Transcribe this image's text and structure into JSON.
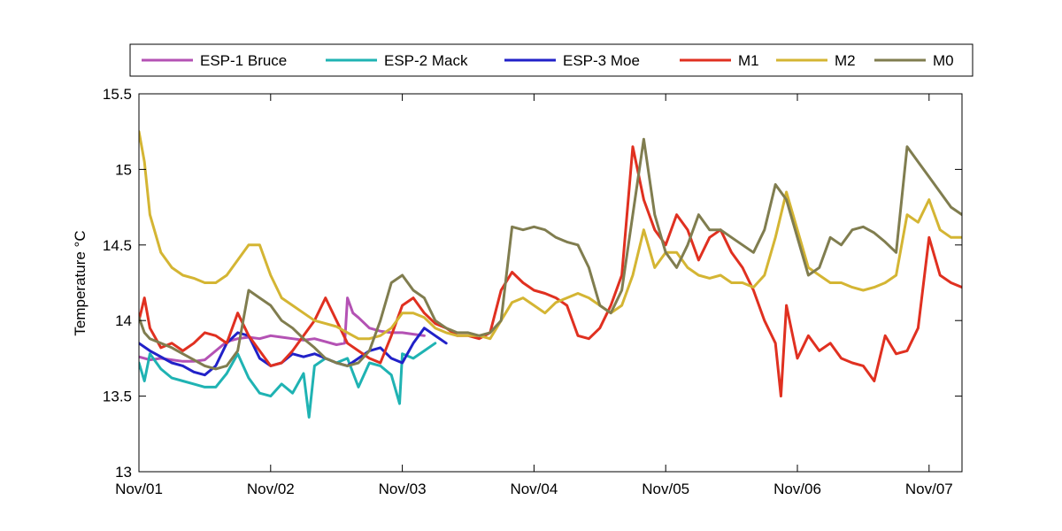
{
  "chart_data": {
    "type": "line",
    "title": "",
    "xlabel": "",
    "ylabel": "Temperature °C",
    "ylim": [
      13,
      15.5
    ],
    "xlim": [
      "2011-11-01 00:00",
      "2011-11-07 06:00"
    ],
    "grid": false,
    "legend_position": "top",
    "x_ticks": [
      "2011-11-01",
      "2011-11-02",
      "2011-11-03",
      "2011-11-04",
      "2011-11-05",
      "2011-11-06",
      "2011-11-07"
    ],
    "x_tick_labels": [
      "Nov/01",
      "Nov/02",
      "Nov/03",
      "Nov/04",
      "Nov/05",
      "Nov/06",
      "Nov/07"
    ],
    "y_ticks": [
      13,
      13.5,
      14,
      14.5,
      15,
      15.5
    ],
    "y_tick_labels": [
      "13",
      "13.5",
      "14",
      "14.5",
      "15",
      "15.5"
    ],
    "series": [
      {
        "name": "ESP-1 Bruce",
        "color": "#b452b4",
        "x": [
          "2011-11-01 00:00",
          "2011-11-01 02:00",
          "2011-11-01 04:00",
          "2011-11-01 06:00",
          "2011-11-01 08:00",
          "2011-11-01 10:00",
          "2011-11-01 12:00",
          "2011-11-01 14:00",
          "2011-11-01 16:00",
          "2011-11-01 18:00",
          "2011-11-01 20:00",
          "2011-11-01 22:00",
          "2011-11-02 00:00",
          "2011-11-02 02:00",
          "2011-11-02 04:00",
          "2011-11-02 06:00",
          "2011-11-02 08:00",
          "2011-11-02 10:00",
          "2011-11-02 12:00",
          "2011-11-02 13:30",
          "2011-11-02 14:00",
          "2011-11-02 14:30",
          "2011-11-02 15:00",
          "2011-11-02 16:00",
          "2011-11-02 18:00",
          "2011-11-02 20:00",
          "2011-11-02 22:00",
          "2011-11-03 00:00",
          "2011-11-03 02:00",
          "2011-11-03 04:00"
        ],
        "y": [
          13.76,
          13.74,
          13.75,
          13.74,
          13.73,
          13.73,
          13.74,
          13.8,
          13.86,
          13.88,
          13.89,
          13.88,
          13.9,
          13.89,
          13.88,
          13.87,
          13.88,
          13.86,
          13.84,
          13.85,
          14.15,
          14.1,
          14.05,
          14.02,
          13.95,
          13.93,
          13.92,
          13.92,
          13.91,
          13.9
        ]
      },
      {
        "name": "ESP-2 Mack",
        "color": "#1fb3b3",
        "x": [
          "2011-11-01 00:00",
          "2011-11-01 01:00",
          "2011-11-01 02:00",
          "2011-11-01 04:00",
          "2011-11-01 06:00",
          "2011-11-01 08:00",
          "2011-11-01 10:00",
          "2011-11-01 12:00",
          "2011-11-01 14:00",
          "2011-11-01 16:00",
          "2011-11-01 18:00",
          "2011-11-01 20:00",
          "2011-11-01 22:00",
          "2011-11-02 00:00",
          "2011-11-02 02:00",
          "2011-11-02 04:00",
          "2011-11-02 06:00",
          "2011-11-02 07:00",
          "2011-11-02 08:00",
          "2011-11-02 10:00",
          "2011-11-02 12:00",
          "2011-11-02 14:00",
          "2011-11-02 16:00",
          "2011-11-02 18:00",
          "2011-11-02 20:00",
          "2011-11-02 22:00",
          "2011-11-02 23:30",
          "2011-11-03 00:00",
          "2011-11-03 02:00",
          "2011-11-03 04:00",
          "2011-11-03 06:00"
        ],
        "y": [
          13.72,
          13.6,
          13.78,
          13.68,
          13.62,
          13.6,
          13.58,
          13.56,
          13.56,
          13.65,
          13.78,
          13.62,
          13.52,
          13.5,
          13.58,
          13.52,
          13.65,
          13.36,
          13.7,
          13.75,
          13.72,
          13.75,
          13.56,
          13.72,
          13.7,
          13.64,
          13.45,
          13.78,
          13.75,
          13.8,
          13.85
        ]
      },
      {
        "name": "ESP-3 Moe",
        "color": "#2121c8",
        "x": [
          "2011-11-01 00:00",
          "2011-11-01 02:00",
          "2011-11-01 04:00",
          "2011-11-01 06:00",
          "2011-11-01 08:00",
          "2011-11-01 10:00",
          "2011-11-01 12:00",
          "2011-11-01 14:00",
          "2011-11-01 16:00",
          "2011-11-01 18:00",
          "2011-11-01 20:00",
          "2011-11-01 22:00",
          "2011-11-02 00:00",
          "2011-11-02 02:00",
          "2011-11-02 04:00",
          "2011-11-02 06:00",
          "2011-11-02 08:00",
          "2011-11-02 10:00",
          "2011-11-02 12:00",
          "2011-11-02 14:00",
          "2011-11-02 16:00",
          "2011-11-02 18:00",
          "2011-11-02 20:00",
          "2011-11-02 22:00",
          "2011-11-03 00:00",
          "2011-11-03 02:00",
          "2011-11-03 04:00",
          "2011-11-03 06:00",
          "2011-11-03 08:00"
        ],
        "y": [
          13.85,
          13.8,
          13.76,
          13.72,
          13.7,
          13.66,
          13.64,
          13.7,
          13.85,
          13.92,
          13.9,
          13.75,
          13.7,
          13.72,
          13.78,
          13.76,
          13.78,
          13.75,
          13.72,
          13.7,
          13.75,
          13.8,
          13.82,
          13.75,
          13.72,
          13.85,
          13.95,
          13.9,
          13.85
        ]
      },
      {
        "name": "M1",
        "color": "#e03020",
        "x": [
          "2011-11-01 00:00",
          "2011-11-01 01:00",
          "2011-11-01 02:00",
          "2011-11-01 04:00",
          "2011-11-01 06:00",
          "2011-11-01 08:00",
          "2011-11-01 10:00",
          "2011-11-01 12:00",
          "2011-11-01 14:00",
          "2011-11-01 16:00",
          "2011-11-01 18:00",
          "2011-11-01 20:00",
          "2011-11-01 22:00",
          "2011-11-02 00:00",
          "2011-11-02 02:00",
          "2011-11-02 04:00",
          "2011-11-02 06:00",
          "2011-11-02 08:00",
          "2011-11-02 10:00",
          "2011-11-02 12:00",
          "2011-11-02 14:00",
          "2011-11-02 16:00",
          "2011-11-02 18:00",
          "2011-11-02 20:00",
          "2011-11-02 22:00",
          "2011-11-03 00:00",
          "2011-11-03 02:00",
          "2011-11-03 04:00",
          "2011-11-03 06:00",
          "2011-11-03 08:00",
          "2011-11-03 10:00",
          "2011-11-03 12:00",
          "2011-11-03 14:00",
          "2011-11-03 16:00",
          "2011-11-03 18:00",
          "2011-11-03 20:00",
          "2011-11-03 22:00",
          "2011-11-04 00:00",
          "2011-11-04 02:00",
          "2011-11-04 04:00",
          "2011-11-04 06:00",
          "2011-11-04 08:00",
          "2011-11-04 10:00",
          "2011-11-04 12:00",
          "2011-11-04 14:00",
          "2011-11-04 16:00",
          "2011-11-04 18:00",
          "2011-11-04 20:00",
          "2011-11-04 22:00",
          "2011-11-05 00:00",
          "2011-11-05 02:00",
          "2011-11-05 04:00",
          "2011-11-05 06:00",
          "2011-11-05 08:00",
          "2011-11-05 10:00",
          "2011-11-05 12:00",
          "2011-11-05 14:00",
          "2011-11-05 16:00",
          "2011-11-05 18:00",
          "2011-11-05 20:00",
          "2011-11-05 21:00",
          "2011-11-05 22:00",
          "2011-11-06 00:00",
          "2011-11-06 02:00",
          "2011-11-06 04:00",
          "2011-11-06 06:00",
          "2011-11-06 08:00",
          "2011-11-06 10:00",
          "2011-11-06 12:00",
          "2011-11-06 14:00",
          "2011-11-06 16:00",
          "2011-11-06 18:00",
          "2011-11-06 20:00",
          "2011-11-06 22:00",
          "2011-11-07 00:00",
          "2011-11-07 02:00",
          "2011-11-07 04:00",
          "2011-11-07 06:00"
        ],
        "y": [
          14.0,
          14.15,
          13.95,
          13.82,
          13.85,
          13.8,
          13.85,
          13.92,
          13.9,
          13.85,
          14.05,
          13.9,
          13.8,
          13.7,
          13.72,
          13.8,
          13.9,
          14.0,
          14.15,
          14.0,
          13.85,
          13.8,
          13.75,
          13.72,
          13.9,
          14.1,
          14.15,
          14.05,
          13.98,
          13.95,
          13.9,
          13.9,
          13.88,
          13.92,
          14.2,
          14.32,
          14.25,
          14.2,
          14.18,
          14.15,
          14.1,
          13.9,
          13.88,
          13.95,
          14.1,
          14.3,
          15.15,
          14.8,
          14.6,
          14.5,
          14.7,
          14.6,
          14.4,
          14.55,
          14.6,
          14.45,
          14.35,
          14.2,
          14.0,
          13.85,
          13.5,
          14.1,
          13.75,
          13.9,
          13.8,
          13.85,
          13.75,
          13.72,
          13.7,
          13.6,
          13.9,
          13.78,
          13.8,
          13.95,
          14.55,
          14.3,
          14.25,
          14.22
        ]
      },
      {
        "name": "M2",
        "color": "#d4b533",
        "x": [
          "2011-11-01 00:00",
          "2011-11-01 01:00",
          "2011-11-01 02:00",
          "2011-11-01 04:00",
          "2011-11-01 06:00",
          "2011-11-01 08:00",
          "2011-11-01 10:00",
          "2011-11-01 12:00",
          "2011-11-01 14:00",
          "2011-11-01 16:00",
          "2011-11-01 18:00",
          "2011-11-01 20:00",
          "2011-11-01 22:00",
          "2011-11-02 00:00",
          "2011-11-02 02:00",
          "2011-11-02 04:00",
          "2011-11-02 06:00",
          "2011-11-02 08:00",
          "2011-11-02 10:00",
          "2011-11-02 12:00",
          "2011-11-02 14:00",
          "2011-11-02 16:00",
          "2011-11-02 18:00",
          "2011-11-02 20:00",
          "2011-11-02 22:00",
          "2011-11-03 00:00",
          "2011-11-03 02:00",
          "2011-11-03 04:00",
          "2011-11-03 06:00",
          "2011-11-03 08:00",
          "2011-11-03 10:00",
          "2011-11-03 12:00",
          "2011-11-03 14:00",
          "2011-11-03 16:00",
          "2011-11-03 18:00",
          "2011-11-03 20:00",
          "2011-11-03 22:00",
          "2011-11-04 00:00",
          "2011-11-04 02:00",
          "2011-11-04 04:00",
          "2011-11-04 06:00",
          "2011-11-04 08:00",
          "2011-11-04 10:00",
          "2011-11-04 12:00",
          "2011-11-04 14:00",
          "2011-11-04 16:00",
          "2011-11-04 18:00",
          "2011-11-04 20:00",
          "2011-11-04 22:00",
          "2011-11-05 00:00",
          "2011-11-05 02:00",
          "2011-11-05 04:00",
          "2011-11-05 06:00",
          "2011-11-05 08:00",
          "2011-11-05 10:00",
          "2011-11-05 12:00",
          "2011-11-05 14:00",
          "2011-11-05 16:00",
          "2011-11-05 18:00",
          "2011-11-05 20:00",
          "2011-11-05 22:00",
          "2011-11-06 00:00",
          "2011-11-06 02:00",
          "2011-11-06 04:00",
          "2011-11-06 06:00",
          "2011-11-06 08:00",
          "2011-11-06 10:00",
          "2011-11-06 12:00",
          "2011-11-06 14:00",
          "2011-11-06 16:00",
          "2011-11-06 18:00",
          "2011-11-06 20:00",
          "2011-11-06 22:00",
          "2011-11-07 00:00",
          "2011-11-07 02:00",
          "2011-11-07 04:00",
          "2011-11-07 06:00"
        ],
        "y": [
          15.25,
          15.05,
          14.7,
          14.45,
          14.35,
          14.3,
          14.28,
          14.25,
          14.25,
          14.3,
          14.4,
          14.5,
          14.5,
          14.3,
          14.15,
          14.1,
          14.05,
          14.0,
          13.98,
          13.96,
          13.92,
          13.88,
          13.88,
          13.9,
          13.95,
          14.05,
          14.05,
          14.02,
          13.95,
          13.92,
          13.9,
          13.9,
          13.9,
          13.88,
          14.0,
          14.12,
          14.15,
          14.1,
          14.05,
          14.12,
          14.15,
          14.18,
          14.15,
          14.1,
          14.05,
          14.1,
          14.3,
          14.6,
          14.35,
          14.45,
          14.45,
          14.35,
          14.3,
          14.28,
          14.3,
          14.25,
          14.25,
          14.22,
          14.3,
          14.55,
          14.85,
          14.6,
          14.35,
          14.3,
          14.25,
          14.25,
          14.22,
          14.2,
          14.22,
          14.25,
          14.3,
          14.7,
          14.65,
          14.8,
          14.6,
          14.55,
          14.55
        ]
      },
      {
        "name": "M0",
        "color": "#807d4f",
        "x": [
          "2011-11-01 00:00",
          "2011-11-01 01:00",
          "2011-11-01 02:00",
          "2011-11-01 04:00",
          "2011-11-01 06:00",
          "2011-11-01 08:00",
          "2011-11-01 10:00",
          "2011-11-01 12:00",
          "2011-11-01 14:00",
          "2011-11-01 16:00",
          "2011-11-01 18:00",
          "2011-11-01 20:00",
          "2011-11-01 22:00",
          "2011-11-02 00:00",
          "2011-11-02 02:00",
          "2011-11-02 04:00",
          "2011-11-02 06:00",
          "2011-11-02 08:00",
          "2011-11-02 10:00",
          "2011-11-02 12:00",
          "2011-11-02 14:00",
          "2011-11-02 16:00",
          "2011-11-02 18:00",
          "2011-11-02 20:00",
          "2011-11-02 22:00",
          "2011-11-03 00:00",
          "2011-11-03 02:00",
          "2011-11-03 04:00",
          "2011-11-03 06:00",
          "2011-11-03 08:00",
          "2011-11-03 10:00",
          "2011-11-03 12:00",
          "2011-11-03 14:00",
          "2011-11-03 16:00",
          "2011-11-03 18:00",
          "2011-11-03 20:00",
          "2011-11-03 22:00",
          "2011-11-04 00:00",
          "2011-11-04 02:00",
          "2011-11-04 04:00",
          "2011-11-04 06:00",
          "2011-11-04 08:00",
          "2011-11-04 10:00",
          "2011-11-04 12:00",
          "2011-11-04 14:00",
          "2011-11-04 16:00",
          "2011-11-04 18:00",
          "2011-11-04 20:00",
          "2011-11-04 22:00",
          "2011-11-05 00:00",
          "2011-11-05 02:00",
          "2011-11-05 04:00",
          "2011-11-05 06:00",
          "2011-11-05 08:00",
          "2011-11-05 10:00",
          "2011-11-05 12:00",
          "2011-11-05 14:00",
          "2011-11-05 16:00",
          "2011-11-05 18:00",
          "2011-11-05 20:00",
          "2011-11-05 22:00",
          "2011-11-06 00:00",
          "2011-11-06 02:00",
          "2011-11-06 04:00",
          "2011-11-06 06:00",
          "2011-11-06 08:00",
          "2011-11-06 10:00",
          "2011-11-06 12:00",
          "2011-11-06 14:00",
          "2011-11-06 16:00",
          "2011-11-06 18:00",
          "2011-11-06 20:00",
          "2011-11-06 22:00",
          "2011-11-07 00:00",
          "2011-11-07 02:00",
          "2011-11-07 04:00",
          "2011-11-07 06:00"
        ],
        "y": [
          14.02,
          13.92,
          13.88,
          13.85,
          13.82,
          13.78,
          13.74,
          13.7,
          13.68,
          13.7,
          13.8,
          14.2,
          14.15,
          14.1,
          14.0,
          13.95,
          13.88,
          13.82,
          13.75,
          13.72,
          13.7,
          13.72,
          13.8,
          14.0,
          14.25,
          14.3,
          14.2,
          14.15,
          14.0,
          13.95,
          13.92,
          13.92,
          13.9,
          13.92,
          14.0,
          14.62,
          14.6,
          14.62,
          14.6,
          14.55,
          14.52,
          14.5,
          14.35,
          14.1,
          14.05,
          14.2,
          14.7,
          15.2,
          14.7,
          14.45,
          14.35,
          14.5,
          14.7,
          14.6,
          14.6,
          14.55,
          14.5,
          14.45,
          14.6,
          14.9,
          14.8,
          14.55,
          14.3,
          14.35,
          14.55,
          14.5,
          14.6,
          14.62,
          14.58,
          14.52,
          14.45,
          15.15,
          15.05,
          14.95,
          14.85,
          14.75,
          14.7
        ]
      }
    ]
  }
}
